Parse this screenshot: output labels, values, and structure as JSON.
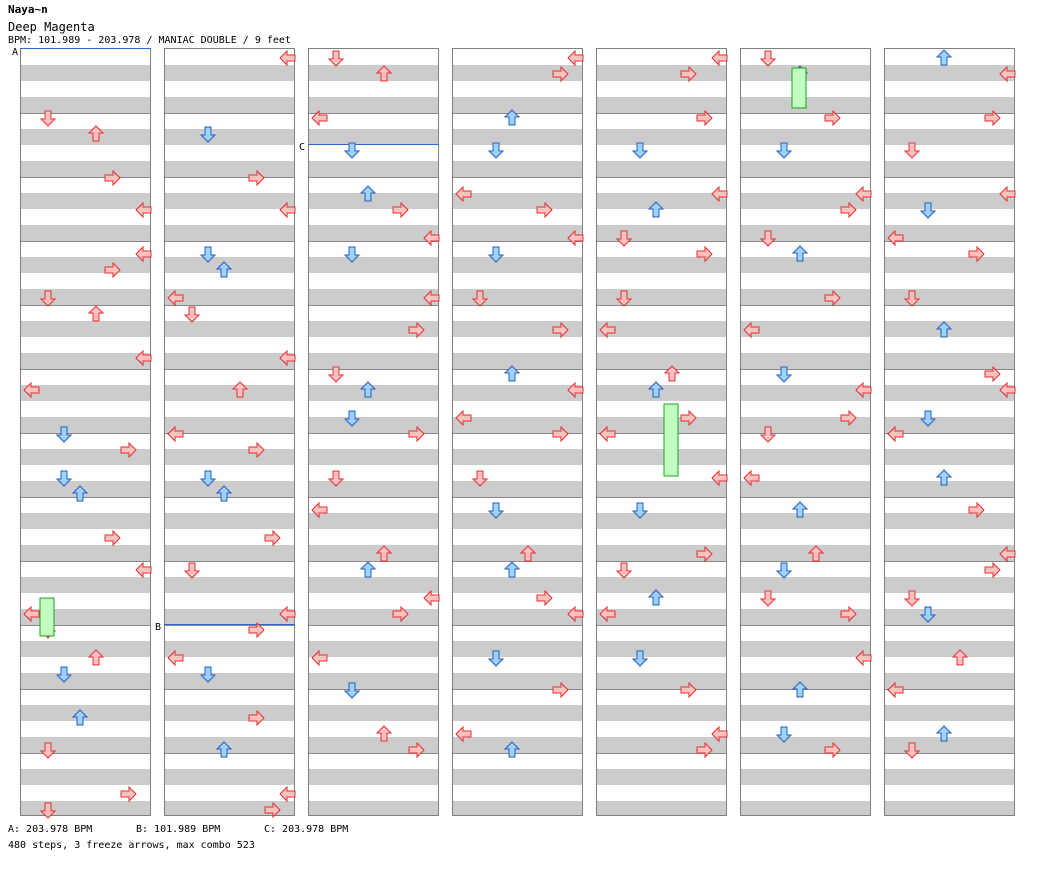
{
  "header": {
    "artist": "Naya~n",
    "song": "Deep Magenta",
    "info": "BPM: 101.989 - 203.978 / MANIAC DOUBLE / 9 feet"
  },
  "markers": [
    {
      "label": "A"
    },
    {
      "label": "B"
    },
    {
      "label": "C"
    }
  ],
  "legend": [
    {
      "text": "A: 203.978 BPM"
    },
    {
      "text": "B: 101.989 BPM"
    },
    {
      "text": "C: 203.978 BPM"
    }
  ],
  "summary": "480 steps, 3 freeze arrows, max combo 523",
  "colors": {
    "red_fill": "#ffc0c0",
    "red_stroke": "#e03030",
    "blue_fill": "#a0d0ff",
    "blue_stroke": "#2060c0",
    "pink_fill": "#ffc0ff",
    "pink_stroke": "#c040c0",
    "freeze_fill": "#c0ffc0",
    "freeze_stroke": "#20a020",
    "stripe": "#cccccc"
  },
  "chart": {
    "columns": 7,
    "notes": [
      [
        0,
        "dl",
        1
      ],
      [
        0,
        "ur",
        1
      ],
      [
        0,
        "ul",
        2
      ],
      [
        0,
        "dr",
        2
      ],
      [
        0,
        "ul",
        3
      ],
      [
        0,
        "dr",
        3
      ],
      [
        0,
        "dl",
        4
      ],
      [
        0,
        "ur",
        4
      ],
      [
        0,
        "l",
        5
      ],
      [
        0,
        "ul",
        5
      ],
      [
        0,
        "d",
        6
      ],
      [
        0,
        "r",
        6
      ],
      [
        0,
        "d",
        7
      ],
      [
        0,
        "u",
        7
      ],
      [
        0,
        "ul",
        8
      ],
      [
        0,
        "dr",
        8
      ],
      [
        0,
        "l",
        9
      ],
      [
        0,
        "dl",
        9
      ],
      [
        0,
        "ur",
        10
      ],
      [
        0,
        "d",
        10
      ],
      [
        0,
        "dl",
        11
      ],
      [
        0,
        "u",
        11
      ],
      [
        0,
        "r",
        12
      ],
      [
        0,
        "dl",
        12
      ],
      [
        1,
        "ul",
        0
      ],
      [
        1,
        "d",
        1
      ],
      [
        1,
        "ul",
        2
      ],
      [
        1,
        "dr",
        2
      ],
      [
        1,
        "d",
        3
      ],
      [
        1,
        "u",
        3
      ],
      [
        1,
        "l",
        4
      ],
      [
        1,
        "dl",
        4
      ],
      [
        1,
        "ur",
        5
      ],
      [
        1,
        "ul",
        5
      ],
      [
        1,
        "l",
        6
      ],
      [
        1,
        "dr",
        6
      ],
      [
        1,
        "d",
        7
      ],
      [
        1,
        "u",
        7
      ],
      [
        1,
        "dl",
        8
      ],
      [
        1,
        "r",
        8
      ],
      [
        1,
        "ul",
        9
      ],
      [
        1,
        "dr",
        9
      ],
      [
        1,
        "l",
        10
      ],
      [
        1,
        "d",
        10
      ],
      [
        1,
        "u",
        11
      ],
      [
        1,
        "dr",
        11
      ],
      [
        1,
        "ul",
        12
      ],
      [
        1,
        "r",
        12
      ],
      [
        2,
        "dl",
        0
      ],
      [
        2,
        "ur",
        0
      ],
      [
        2,
        "d",
        1
      ],
      [
        2,
        "l",
        1
      ],
      [
        2,
        "u",
        2
      ],
      [
        2,
        "dr",
        2
      ],
      [
        2,
        "ul",
        3
      ],
      [
        2,
        "d",
        3
      ],
      [
        2,
        "r",
        4
      ],
      [
        2,
        "ul",
        4
      ],
      [
        2,
        "dl",
        5
      ],
      [
        2,
        "u",
        5
      ],
      [
        2,
        "d",
        6
      ],
      [
        2,
        "r",
        6
      ],
      [
        2,
        "l",
        7
      ],
      [
        2,
        "dl",
        7
      ],
      [
        2,
        "ur",
        8
      ],
      [
        2,
        "u",
        8
      ],
      [
        2,
        "ul",
        9
      ],
      [
        2,
        "dr",
        9
      ],
      [
        2,
        "d",
        10
      ],
      [
        2,
        "l",
        10
      ],
      [
        2,
        "ur",
        11
      ],
      [
        2,
        "r",
        11
      ],
      [
        3,
        "ul",
        0
      ],
      [
        3,
        "r",
        0
      ],
      [
        3,
        "d",
        1
      ],
      [
        3,
        "u",
        1
      ],
      [
        3,
        "l",
        2
      ],
      [
        3,
        "dr",
        2
      ],
      [
        3,
        "ul",
        3
      ],
      [
        3,
        "d",
        3
      ],
      [
        3,
        "r",
        4
      ],
      [
        3,
        "dl",
        4
      ],
      [
        3,
        "u",
        5
      ],
      [
        3,
        "ul",
        5
      ],
      [
        3,
        "l",
        6
      ],
      [
        3,
        "r",
        6
      ],
      [
        3,
        "d",
        7
      ],
      [
        3,
        "dl",
        7
      ],
      [
        3,
        "ur",
        8
      ],
      [
        3,
        "u",
        8
      ],
      [
        3,
        "dr",
        9
      ],
      [
        3,
        "ul",
        9
      ],
      [
        3,
        "r",
        10
      ],
      [
        3,
        "d",
        10
      ],
      [
        3,
        "l",
        11
      ],
      [
        3,
        "u",
        11
      ],
      [
        4,
        "ul",
        0
      ],
      [
        4,
        "dr",
        0
      ],
      [
        4,
        "d",
        1
      ],
      [
        4,
        "r",
        1
      ],
      [
        4,
        "ul",
        2
      ],
      [
        4,
        "u",
        2
      ],
      [
        4,
        "dl",
        3
      ],
      [
        4,
        "r",
        3
      ],
      [
        4,
        "l",
        4
      ],
      [
        4,
        "dl",
        4
      ],
      [
        4,
        "ur",
        5
      ],
      [
        4,
        "u",
        5
      ],
      [
        4,
        "dr",
        6
      ],
      [
        4,
        "l",
        6
      ],
      [
        4,
        "d",
        7
      ],
      [
        4,
        "ul",
        7
      ],
      [
        4,
        "r",
        8
      ],
      [
        4,
        "dl",
        8
      ],
      [
        4,
        "u",
        9
      ],
      [
        4,
        "l",
        9
      ],
      [
        4,
        "dr",
        10
      ],
      [
        4,
        "d",
        10
      ],
      [
        4,
        "ul",
        11
      ],
      [
        4,
        "r",
        11
      ],
      [
        5,
        "dl",
        0
      ],
      [
        5,
        "u",
        0
      ],
      [
        5,
        "d",
        1
      ],
      [
        5,
        "dr",
        1
      ],
      [
        5,
        "ul",
        2
      ],
      [
        5,
        "r",
        2
      ],
      [
        5,
        "dl",
        3
      ],
      [
        5,
        "u",
        3
      ],
      [
        5,
        "l",
        4
      ],
      [
        5,
        "dr",
        4
      ],
      [
        5,
        "d",
        5
      ],
      [
        5,
        "ul",
        5
      ],
      [
        5,
        "r",
        6
      ],
      [
        5,
        "dl",
        6
      ],
      [
        5,
        "u",
        7
      ],
      [
        5,
        "l",
        7
      ],
      [
        5,
        "ur",
        8
      ],
      [
        5,
        "d",
        8
      ],
      [
        5,
        "dl",
        9
      ],
      [
        5,
        "r",
        9
      ],
      [
        5,
        "u",
        10
      ],
      [
        5,
        "ul",
        10
      ],
      [
        5,
        "d",
        11
      ],
      [
        5,
        "dr",
        11
      ],
      [
        6,
        "u",
        0
      ],
      [
        6,
        "ul",
        0
      ],
      [
        6,
        "dl",
        1
      ],
      [
        6,
        "r",
        1
      ],
      [
        6,
        "ul",
        2
      ],
      [
        6,
        "d",
        2
      ],
      [
        6,
        "l",
        3
      ],
      [
        6,
        "dr",
        3
      ],
      [
        6,
        "u",
        4
      ],
      [
        6,
        "dl",
        4
      ],
      [
        6,
        "r",
        5
      ],
      [
        6,
        "ul",
        5
      ],
      [
        6,
        "d",
        6
      ],
      [
        6,
        "l",
        6
      ],
      [
        6,
        "dr",
        7
      ],
      [
        6,
        "u",
        7
      ],
      [
        6,
        "ul",
        8
      ],
      [
        6,
        "r",
        8
      ],
      [
        6,
        "dl",
        9
      ],
      [
        6,
        "d",
        9
      ],
      [
        6,
        "l",
        10
      ],
      [
        6,
        "ur",
        10
      ],
      [
        6,
        "u",
        11
      ],
      [
        6,
        "dl",
        11
      ]
    ]
  }
}
